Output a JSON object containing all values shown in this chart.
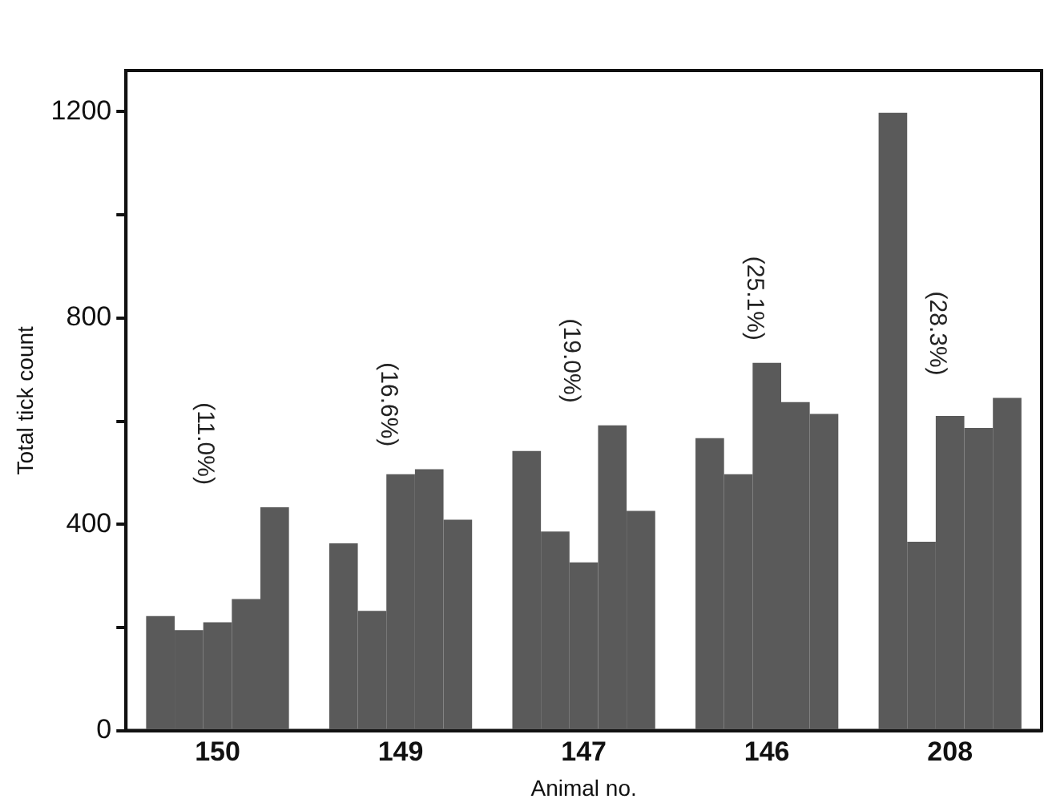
{
  "chart_data": {
    "type": "bar",
    "xlabel": "Animal no.",
    "ylabel": "Total tick count",
    "categories": [
      "150",
      "149",
      "147",
      "146",
      "208"
    ],
    "series": [
      {
        "color": "#5a5a5a",
        "values": [
          222,
          363,
          542,
          567,
          1198
        ]
      },
      {
        "color": "#5a5a5a",
        "values": [
          195,
          232,
          386,
          497,
          366
        ]
      },
      {
        "color": "#5a5a5a",
        "values": [
          210,
          497,
          326,
          713,
          610
        ]
      },
      {
        "color": "#5a5a5a",
        "values": [
          255,
          507,
          592,
          637,
          587
        ]
      },
      {
        "color": "#5a5a5a",
        "values": [
          433,
          409,
          426,
          614,
          645
        ]
      }
    ],
    "ylim": [
      0,
      1280
    ],
    "yticks": [
      0,
      {
        "value": 200,
        "label": null
      },
      400,
      {
        "value": 600,
        "label": null
      },
      800,
      {
        "value": 1000,
        "label": null
      },
      1200
    ],
    "grid": false,
    "legend": false,
    "annotations": [
      "(11.0%)",
      "(16.6%)",
      "(19.0%)",
      "(25.1%)",
      "(28.3%)"
    ]
  }
}
